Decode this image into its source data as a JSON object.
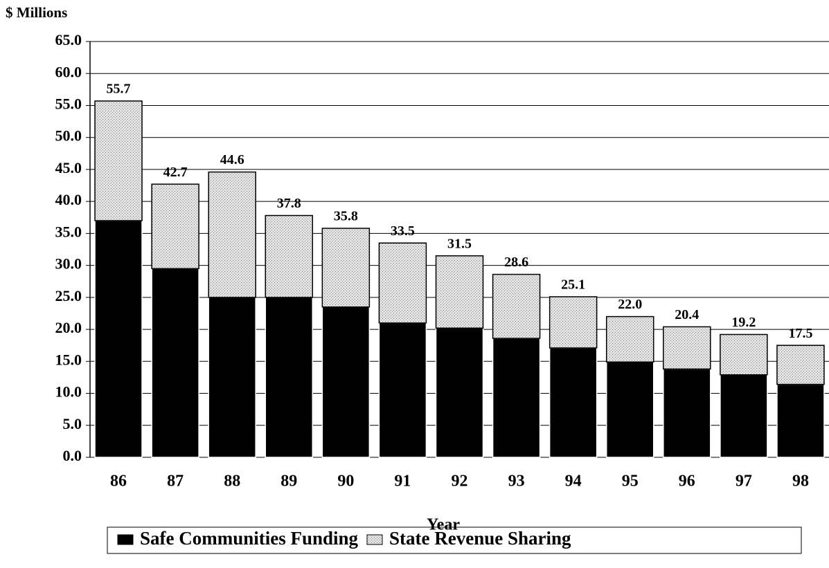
{
  "chart_data": {
    "type": "stacked_bar",
    "ylabel": "$ Millions",
    "xlabel": "Year",
    "categories": [
      "86",
      "87",
      "88",
      "89",
      "90",
      "91",
      "92",
      "93",
      "94",
      "95",
      "96",
      "97",
      "98"
    ],
    "series": [
      {
        "name": "Safe Communities Funding",
        "color": "#000000",
        "values": [
          37.0,
          29.5,
          25.0,
          25.0,
          23.5,
          21.0,
          20.2,
          18.6,
          17.1,
          14.9,
          13.8,
          12.9,
          11.4
        ]
      },
      {
        "name": "State Revenue Sharing",
        "color": "#d4d4d4",
        "values": [
          18.7,
          13.2,
          19.6,
          12.8,
          12.3,
          12.5,
          11.3,
          10.0,
          8.0,
          7.1,
          6.6,
          6.3,
          6.1
        ]
      }
    ],
    "totals": [
      55.7,
      42.7,
      44.6,
      37.8,
      35.8,
      33.5,
      31.5,
      28.6,
      25.1,
      22.0,
      20.4,
      19.2,
      17.5
    ],
    "total_labels": [
      "55.7",
      "42.7",
      "44.6",
      "37.8",
      "35.8",
      "33.5",
      "31.5",
      "28.6",
      "25.1",
      "22.0",
      "20.4",
      "19.2",
      "17.5"
    ],
    "ylim": [
      0,
      65
    ],
    "yticks": [
      {
        "value": 0,
        "label": "0.0"
      },
      {
        "value": 5,
        "label": "5.0"
      },
      {
        "value": 10,
        "label": "10.0"
      },
      {
        "value": 15,
        "label": "15.0"
      },
      {
        "value": 20,
        "label": "20.0"
      },
      {
        "value": 25,
        "label": "25.0"
      },
      {
        "value": 30,
        "label": "30.0"
      },
      {
        "value": 35,
        "label": "35.0"
      },
      {
        "value": 40,
        "label": "40.0"
      },
      {
        "value": 45,
        "label": "45.0"
      },
      {
        "value": 50,
        "label": "50.0"
      },
      {
        "value": 55,
        "label": "55.0"
      },
      {
        "value": 60,
        "label": "60.0"
      },
      {
        "value": 65,
        "label": "65.0"
      }
    ],
    "grid": true
  }
}
